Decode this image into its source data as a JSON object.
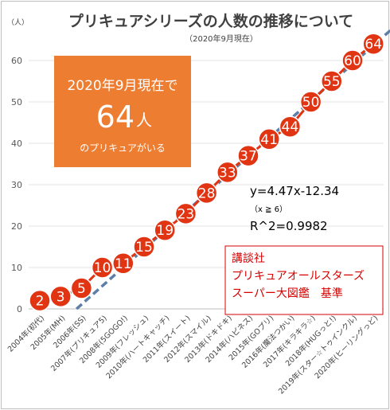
{
  "chart_data": {
    "type": "line",
    "title": "プリキュアシリーズの人数の推移について",
    "subtitle": "（2020年9月現在）",
    "y_unit_label": "（人）",
    "ylim": [
      0,
      65
    ],
    "yticks": [
      0,
      10,
      20,
      30,
      40,
      50,
      60
    ],
    "grid": true,
    "categories": [
      "2004年(初代)",
      "2005年(MH)",
      "2006年(SS)",
      "2007年(プリキュア5)",
      "2008年(5GOGO!)",
      "2009年(フレッシュ)",
      "2010年(ハートキャッチ)",
      "2011年(スイート)",
      "2012年(スマイル)",
      "2013年(ドキドキ)",
      "2014年(ハピネス)",
      "2015年(GOプリ)",
      "2016年(魔法つかい)",
      "2017年(キラキラ☆)",
      "2018年(HUGっと!)",
      "2019年(スター☆トゥインクル)",
      "2020年(ヒーリングっど)"
    ],
    "values": [
      2,
      3,
      5,
      10,
      11,
      15,
      19,
      23,
      28,
      33,
      37,
      41,
      44,
      50,
      55,
      60,
      64
    ],
    "trendline": {
      "style": "dashed",
      "color": "#5b7fa8",
      "equation": "y=4.47x-12.34",
      "condition": "（x ≧ 6）",
      "r_squared": "R^2=0.9982",
      "slope": 4.47,
      "intercept": -12.34
    },
    "callout": {
      "line1": "2020年9月現在で",
      "number": "64",
      "unit": "人",
      "line3": "のプリキュアがいる"
    },
    "source": {
      "lines": [
        "講談社",
        "プリキュアオールスターズ",
        "スーパー大図鑑　基準"
      ]
    },
    "colors": {
      "series": "#e03412",
      "trend": "#5b7fa8",
      "callout": "#ed7d31",
      "source_text": "#d60000"
    }
  }
}
